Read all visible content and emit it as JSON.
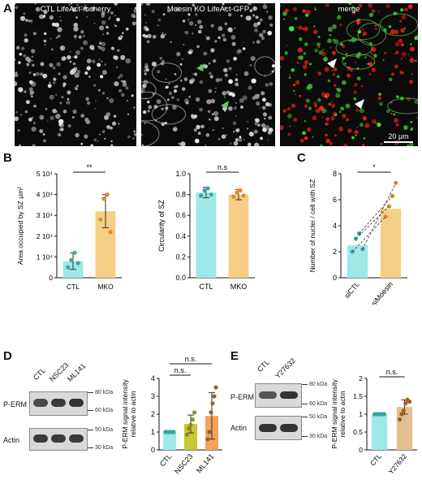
{
  "panel_a": {
    "label": "A",
    "images": [
      {
        "caption": "CTL LifeAct-mcherry"
      },
      {
        "caption": "Moesin KO LifeAct-GFP"
      },
      {
        "caption": "merge"
      }
    ],
    "scale_bar": "20 μm"
  },
  "panel_b": {
    "label": "B"
  },
  "panel_c": {
    "label": "C"
  },
  "panel_d": {
    "label": "D",
    "lanes": [
      "CTL",
      "NSC23",
      "ML141"
    ],
    "rows": [
      "P-ERM",
      "Actin"
    ],
    "kda_top": [
      "80 kDa",
      "60 kDa"
    ],
    "kda_bottom": [
      "50 kDa",
      "30 kDa"
    ]
  },
  "panel_e": {
    "label": "E",
    "lanes": [
      "CTL",
      "Y27632"
    ],
    "rows": [
      "P-ERM",
      "Actin"
    ],
    "kda_top": [
      "80 kDa",
      "60 kDa"
    ],
    "kda_bottom": [
      "50 kDa",
      "30 kDa"
    ]
  },
  "colors": {
    "cyan": "#9ee8e8",
    "cyan_dot": "#3aa6a0",
    "orange": "#f5cf86",
    "orange_dot": "#e08a2c",
    "olive": "#c9c638",
    "olive_dot": "#8f8f1c",
    "tan": "#e3c090",
    "tan_dot": "#a45e22"
  },
  "chart_data": [
    {
      "id": "B1",
      "type": "bar",
      "ylabel": "Area occupied by SZ μm²",
      "categories": [
        "CTL",
        "MKO"
      ],
      "values": [
        8000,
        32000
      ],
      "errors": [
        4000,
        8000
      ],
      "points": [
        [
          5000,
          8500,
          12000,
          7000
        ],
        [
          28000,
          38000,
          40000,
          22000
        ]
      ],
      "ylim": [
        0,
        50000
      ],
      "yticks": [
        "0",
        "1 10⁴",
        "2 10⁴",
        "3 10⁴",
        "4 10⁴",
        "5 10⁴"
      ],
      "significance": "**",
      "bar_colors": [
        "#9ee8e8",
        "#f5cf86"
      ]
    },
    {
      "id": "B2",
      "type": "bar",
      "ylabel": "Circularity of SZ",
      "categories": [
        "CTL",
        "MKO"
      ],
      "values": [
        0.82,
        0.8
      ],
      "errors": [
        0.05,
        0.05
      ],
      "points": [
        [
          0.79,
          0.84,
          0.86,
          0.8
        ],
        [
          0.78,
          0.82,
          0.84,
          0.79
        ]
      ],
      "ylim": [
        0,
        1.0
      ],
      "yticks": [
        "0.0",
        "0.2",
        "0.4",
        "0.6",
        "0.8",
        "1.0"
      ],
      "significance": "n.s",
      "bar_colors": [
        "#9ee8e8",
        "#f5cf86"
      ]
    },
    {
      "id": "C",
      "type": "bar",
      "ylabel": "Number of nuclei / cell with SZ",
      "categories": [
        "siCTL",
        "siMoesin"
      ],
      "values": [
        2.5,
        5.3
      ],
      "points": [
        [
          2.0,
          3.0,
          3.4,
          2.2
        ],
        [
          4.7,
          5.5,
          6.3,
          7.3
        ]
      ],
      "paired": true,
      "ylim": [
        0,
        8
      ],
      "yticks": [
        "0",
        "2",
        "4",
        "6",
        "8"
      ],
      "significance": "*",
      "bar_colors": [
        "#9ee8e8",
        "#f5cf86"
      ]
    },
    {
      "id": "D",
      "type": "bar",
      "ylabel": "P-ERM signal intensity relative to actin",
      "categories": [
        "CTL",
        "NSC23",
        "ML141"
      ],
      "values": [
        1.0,
        1.45,
        1.9
      ],
      "errors": [
        0.0,
        0.5,
        1.3
      ],
      "points": [
        [
          1,
          1,
          1,
          1,
          1,
          1
        ],
        [
          0.85,
          1.2,
          1.4,
          1.7,
          2.1
        ],
        [
          0.6,
          1.0,
          2.1,
          2.6,
          3.0,
          3.5
        ]
      ],
      "ylim": [
        0,
        4
      ],
      "yticks": [
        "0",
        "1",
        "2",
        "3",
        "4"
      ],
      "significance": [
        "n.s.",
        "n.s."
      ],
      "bar_colors": [
        "#9ee8e8",
        "#c9c638",
        "#f2a35a"
      ]
    },
    {
      "id": "E",
      "type": "bar",
      "ylabel": "P-ERM signal intensity relative to actin",
      "categories": [
        "CTL",
        "Y27632"
      ],
      "values": [
        1.0,
        1.2
      ],
      "errors": [
        0.0,
        0.2
      ],
      "points": [
        [
          1,
          1,
          1,
          1,
          1,
          1
        ],
        [
          0.85,
          1.0,
          1.1,
          1.3,
          1.4,
          1.35
        ]
      ],
      "ylim": [
        0,
        2.0
      ],
      "yticks": [
        "0",
        "0.5",
        "1",
        "1.5",
        "2"
      ],
      "significance": "n.s.",
      "bar_colors": [
        "#9ee8e8",
        "#e3c090"
      ]
    }
  ]
}
